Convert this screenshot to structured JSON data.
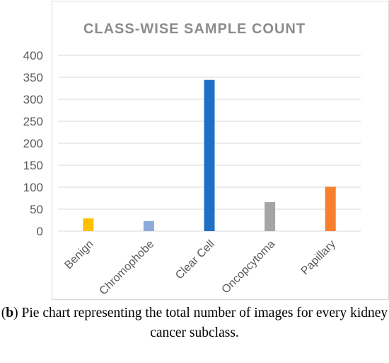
{
  "chart_data": {
    "type": "bar",
    "title": "CLASS-WISE SAMPLE COUNT",
    "categories": [
      "Benign",
      "Chromophobe",
      "Clear Cell",
      "Oncopcytoma",
      "Papillary"
    ],
    "values": [
      29,
      23,
      344,
      66,
      101
    ],
    "bar_colors": [
      "#ffc000",
      "#8eaadb",
      "#1f6fc5",
      "#a5a5a5",
      "#f77f2d"
    ],
    "ylim": [
      0,
      400
    ],
    "yticks": [
      "0",
      "50",
      "100",
      "150",
      "200",
      "250",
      "300",
      "350",
      "400"
    ],
    "grid": true,
    "legend": "none"
  },
  "caption": {
    "marker_open": "(",
    "marker": "b",
    "marker_close": ")",
    "text": " Pie chart representing the total number of images for every kidney cancer subclass."
  }
}
